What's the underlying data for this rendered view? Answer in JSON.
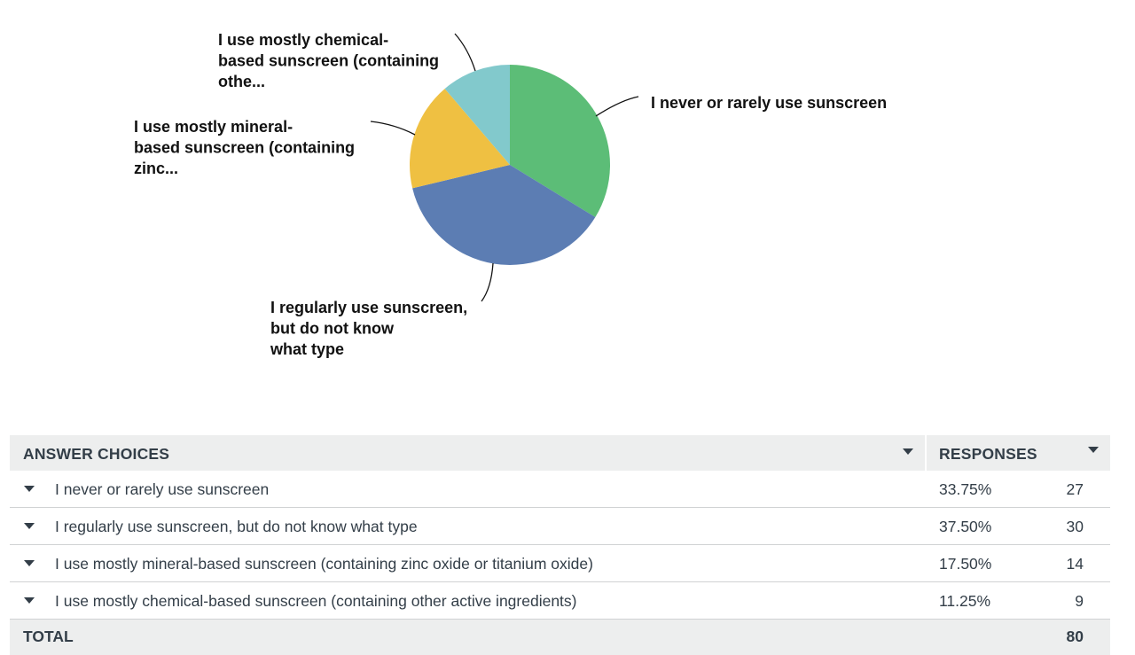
{
  "chart_data": {
    "type": "pie",
    "slices": [
      {
        "label": "I never or rarely use sunscreen",
        "chart_label_lines": [
          "I never or rarely use sunscreen"
        ],
        "percent": 33.75,
        "count": 27,
        "color": "#5cbd77"
      },
      {
        "label": "I regularly use sunscreen, but do not know what type",
        "chart_label_lines": [
          "I regularly use sunscreen,",
          "but do not know",
          "what type"
        ],
        "percent": 37.5,
        "count": 30,
        "color": "#5c7db3"
      },
      {
        "label": "I use mostly mineral-based sunscreen (containing zinc oxide or titanium oxide)",
        "chart_label_lines": [
          "I use mostly mineral-",
          "based sunscreen (containing",
          "zinc..."
        ],
        "percent": 17.5,
        "count": 14,
        "color": "#efc042"
      },
      {
        "label": "I use mostly chemical-based sunscreen (containing other active ingredients)",
        "chart_label_lines": [
          "I use mostly chemical-",
          "based sunscreen (containing",
          "othe..."
        ],
        "percent": 11.25,
        "count": 9,
        "color": "#82c9cc"
      }
    ]
  },
  "table": {
    "header_choices": "ANSWER CHOICES",
    "header_responses": "RESPONSES",
    "rows": [
      {
        "choice": "I never or rarely use sunscreen",
        "percent": "33.75%",
        "count": "27"
      },
      {
        "choice": "I regularly use sunscreen, but do not know what type",
        "percent": "37.50%",
        "count": "30"
      },
      {
        "choice": "I use mostly mineral-based sunscreen (containing zinc oxide or titanium oxide)",
        "percent": "17.50%",
        "count": "14"
      },
      {
        "choice": "I use mostly chemical-based sunscreen (containing other active ingredients)",
        "percent": "11.25%",
        "count": "9"
      }
    ],
    "total_label": "TOTAL",
    "total_value": "80"
  }
}
